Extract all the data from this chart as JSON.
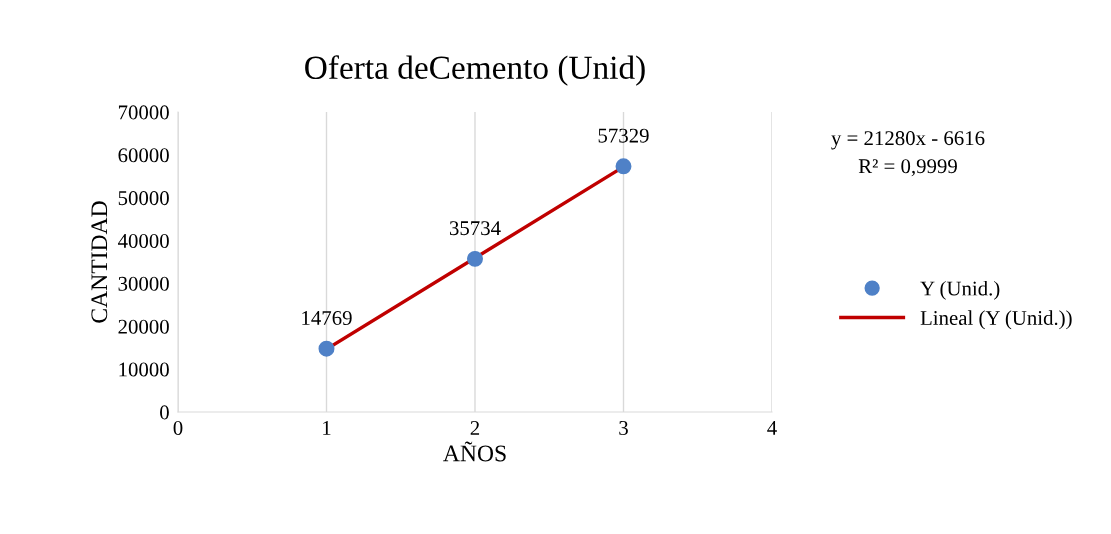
{
  "chart_data": {
    "type": "scatter",
    "title": "Oferta deCemento (Unid)",
    "xlabel": "AÑOS",
    "ylabel": "CANTIDAD",
    "xlim": [
      0,
      4
    ],
    "xticks": [
      0,
      1,
      2,
      3,
      4
    ],
    "ylim": [
      0,
      70000
    ],
    "yticks": [
      0,
      10000,
      20000,
      30000,
      40000,
      50000,
      60000,
      70000
    ],
    "grid": "x",
    "legend": "right",
    "marker": "circle",
    "series": [
      {
        "name": "Y (Unid.)",
        "color": "#4f81c7",
        "x": [
          1,
          2,
          3
        ],
        "values": [
          14769,
          35734,
          57329
        ],
        "value_labels": [
          "14769",
          "35734",
          "57329"
        ]
      },
      {
        "name": "Lineal (Y (Unid.))",
        "type": "line",
        "color": "#c00000",
        "x": [
          1,
          3
        ],
        "values": [
          14660,
          57220
        ],
        "marker": "none",
        "line_style": "solid"
      }
    ],
    "annotations": [
      "y = 21280x - 6616",
      "R² = 0,9999"
    ]
  }
}
